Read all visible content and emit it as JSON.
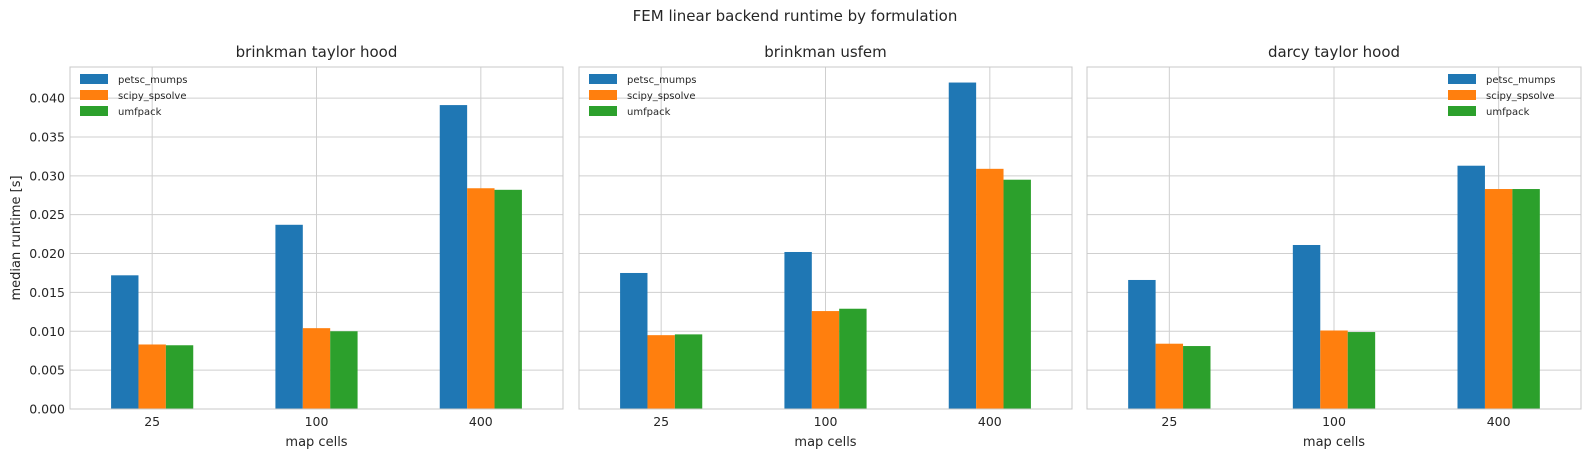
{
  "figure": {
    "title": "FEM linear backend runtime by formulation"
  },
  "series_colors": {
    "petsc_mumps": "#1f77b4",
    "scipy_spsolve": "#ff7f0e",
    "umfpack": "#2ca02c"
  },
  "chart_data": [
    {
      "type": "bar",
      "title": "brinkman taylor hood",
      "xlabel": "map cells",
      "ylabel": "median runtime [s]",
      "categories": [
        "25",
        "100",
        "400"
      ],
      "ylim": [
        0,
        0.044
      ],
      "yticks": [
        "0.000",
        "0.005",
        "0.010",
        "0.015",
        "0.020",
        "0.025",
        "0.030",
        "0.035",
        "0.040"
      ],
      "grid": true,
      "legend_position": "top-left",
      "series": [
        {
          "name": "petsc_mumps",
          "color": "#1f77b4",
          "values": [
            0.0172,
            0.0237,
            0.0391
          ]
        },
        {
          "name": "scipy_spsolve",
          "color": "#ff7f0e",
          "values": [
            0.0083,
            0.0104,
            0.0284
          ]
        },
        {
          "name": "umfpack",
          "color": "#2ca02c",
          "values": [
            0.0082,
            0.01,
            0.0282
          ]
        }
      ]
    },
    {
      "type": "bar",
      "title": "brinkman usfem",
      "xlabel": "map cells",
      "ylabel": "",
      "categories": [
        "25",
        "100",
        "400"
      ],
      "ylim": [
        0,
        0.044
      ],
      "yticks": [],
      "grid": true,
      "legend_position": "top-left",
      "series": [
        {
          "name": "petsc_mumps",
          "color": "#1f77b4",
          "values": [
            0.0175,
            0.0202,
            0.042
          ]
        },
        {
          "name": "scipy_spsolve",
          "color": "#ff7f0e",
          "values": [
            0.0095,
            0.0126,
            0.0309
          ]
        },
        {
          "name": "umfpack",
          "color": "#2ca02c",
          "values": [
            0.0096,
            0.0129,
            0.0295
          ]
        }
      ]
    },
    {
      "type": "bar",
      "title": "darcy taylor hood",
      "xlabel": "map cells",
      "ylabel": "",
      "categories": [
        "25",
        "100",
        "400"
      ],
      "ylim": [
        0,
        0.044
      ],
      "yticks": [],
      "grid": true,
      "legend_position": "top-right",
      "series": [
        {
          "name": "petsc_mumps",
          "color": "#1f77b4",
          "values": [
            0.0166,
            0.0211,
            0.0313
          ]
        },
        {
          "name": "scipy_spsolve",
          "color": "#ff7f0e",
          "values": [
            0.0084,
            0.0101,
            0.0283
          ]
        },
        {
          "name": "umfpack",
          "color": "#2ca02c",
          "values": [
            0.0081,
            0.0099,
            0.0283
          ]
        }
      ]
    }
  ]
}
